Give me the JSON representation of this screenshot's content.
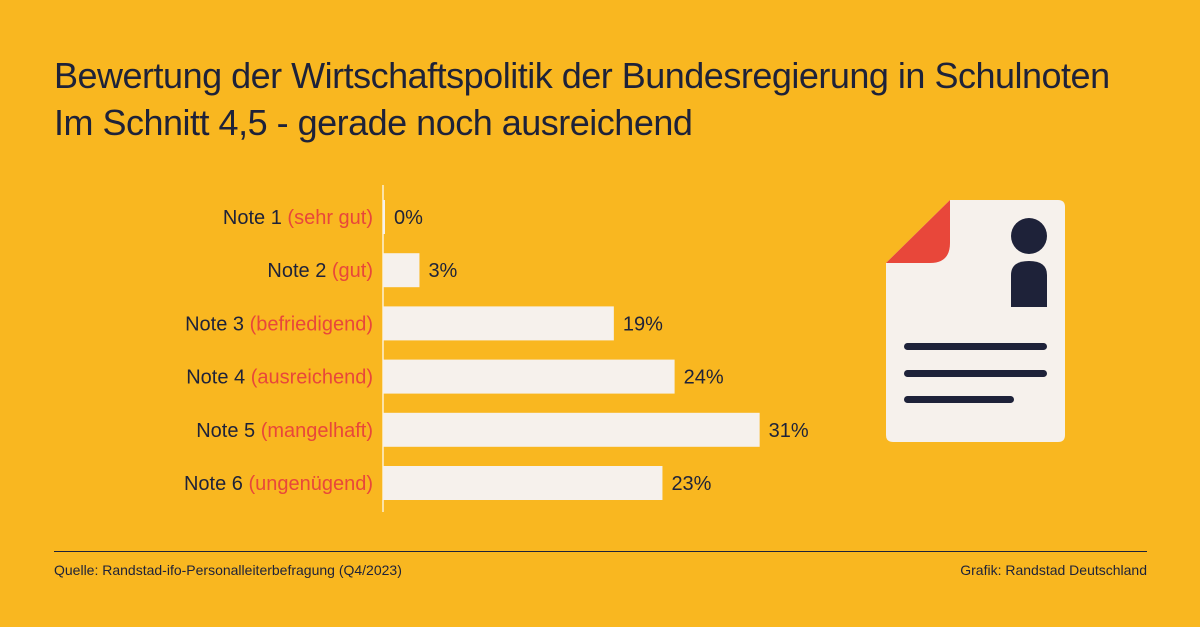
{
  "chart_data": {
    "type": "bar",
    "orientation": "horizontal",
    "title": "Bewertung der Wirtschaftspolitik der Bundesregierung in Schulnoten",
    "subtitle": "Im Schnitt 4,5 - gerade noch ausreichend",
    "categories": [
      {
        "label": "Note 1",
        "sublabel": "(sehr gut)"
      },
      {
        "label": "Note 2",
        "sublabel": "(gut)"
      },
      {
        "label": "Note 3",
        "sublabel": "(befriedigend)"
      },
      {
        "label": "Note 4",
        "sublabel": "(ausreichend)"
      },
      {
        "label": "Note 5",
        "sublabel": "(mangelhaft)"
      },
      {
        "label": "Note 6",
        "sublabel": "(ungenügend)"
      }
    ],
    "values": [
      0,
      3,
      19,
      24,
      31,
      23
    ],
    "value_labels": [
      "0%",
      "3%",
      "19%",
      "24%",
      "31%",
      "23%"
    ],
    "unit": "%",
    "grid": false,
    "legend": "none",
    "colors": {
      "background": "#F9B720",
      "bar": "#F6F1EC",
      "text": "#1E2239",
      "sublabel": "#E8473A"
    }
  },
  "footer": {
    "source": "Quelle: Randstad-ifo-Personalleiterbefragung (Q4/2023)",
    "credit": "Grafik: Randstad Deutschland"
  },
  "illustration": {
    "icon": "document-profile-icon",
    "colors": {
      "paper": "#F6F1EC",
      "corner": "#E8473A",
      "ink": "#1E2239"
    }
  }
}
